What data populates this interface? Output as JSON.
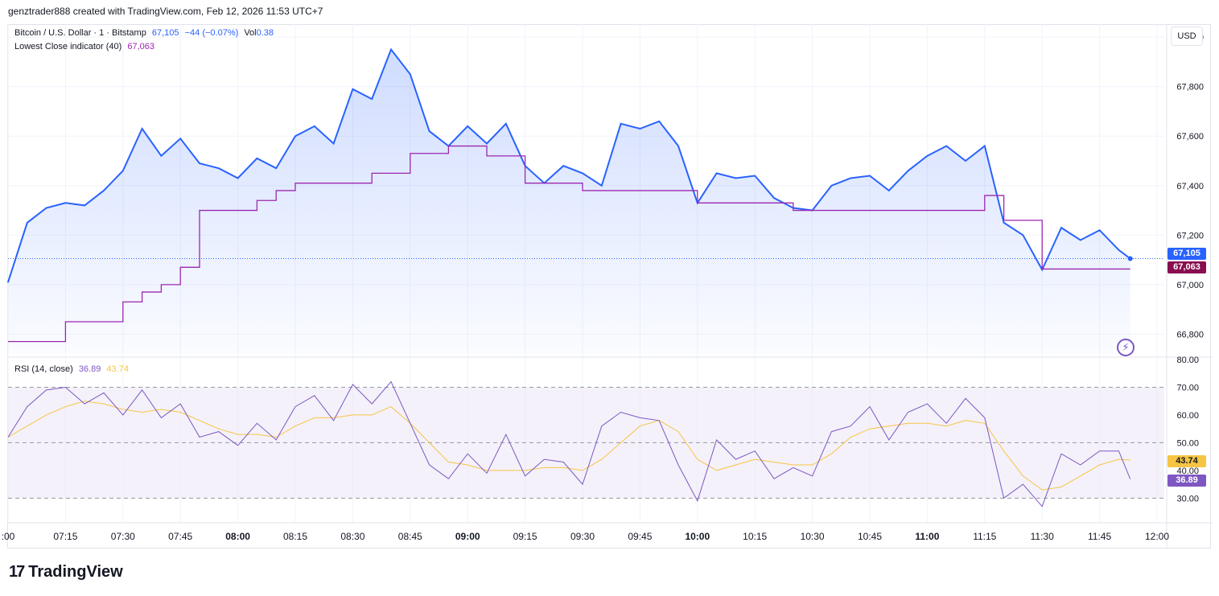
{
  "credit": "genztrader888 created with TradingView.com, Feb 12, 2026 11:53 UTC+7",
  "legend": {
    "symbol": "Bitcoin / U.S. Dollar · 1 · Bitstamp",
    "last": "67,105",
    "change": "−44 (−0.07%)",
    "vol_label": "Vol",
    "vol_value": "0.38",
    "lowest_label": "Lowest Close indicator (40)",
    "lowest_value": "67,063",
    "rsi_label": "RSI (14, close)",
    "rsi_value": "36.89",
    "rsi_ma_value": "43.74"
  },
  "currency_button": "USD",
  "badges": {
    "price": "67,105",
    "lowest": "67,063",
    "rsi_ma": "43.74",
    "rsi": "36.89"
  },
  "price_axis_ticks": [
    "68,000",
    "67,800",
    "67,600",
    "67,400",
    "67,200",
    "67,000",
    "66,800"
  ],
  "rsi_axis_ticks": [
    "80.00",
    "70.00",
    "60.00",
    "50.00",
    "40.00",
    "30.00"
  ],
  "time_axis_ticks": [
    ":00",
    "07:15",
    "07:30",
    "07:45",
    "08:00",
    "08:15",
    "08:30",
    "08:45",
    "09:00",
    "09:15",
    "09:30",
    "09:45",
    "10:00",
    "10:15",
    "10:30",
    "10:45",
    "11:00",
    "11:15",
    "11:30",
    "11:45",
    "12:00"
  ],
  "time_axis_bold": [
    "08:00",
    "09:00",
    "10:00",
    "11:00"
  ],
  "brand": "TradingView",
  "colors": {
    "price": "#2962ff",
    "lowest": "#9c27b0",
    "rsi": "#7e57c2",
    "rsi_ma": "#f7c544",
    "band": "#ede7f6"
  },
  "chart_data": [
    {
      "type": "area",
      "title": "Bitcoin / U.S. Dollar · 1 · Bitstamp",
      "ylim": [
        66720,
        68020
      ],
      "x": [
        "07:00",
        "07:05",
        "07:10",
        "07:15",
        "07:20",
        "07:25",
        "07:30",
        "07:35",
        "07:40",
        "07:45",
        "07:50",
        "07:55",
        "08:00",
        "08:05",
        "08:10",
        "08:15",
        "08:20",
        "08:25",
        "08:30",
        "08:35",
        "08:40",
        "08:45",
        "08:50",
        "08:55",
        "09:00",
        "09:05",
        "09:10",
        "09:15",
        "09:20",
        "09:25",
        "09:30",
        "09:35",
        "09:40",
        "09:45",
        "09:50",
        "09:55",
        "10:00",
        "10:05",
        "10:10",
        "10:15",
        "10:20",
        "10:25",
        "10:30",
        "10:35",
        "10:40",
        "10:45",
        "10:50",
        "10:55",
        "11:00",
        "11:05",
        "11:10",
        "11:15",
        "11:20",
        "11:25",
        "11:30",
        "11:35",
        "11:40",
        "11:45",
        "11:50",
        "11:53"
      ],
      "series": [
        {
          "name": "Bitcoin / U.S. Dollar",
          "values": [
            67010,
            67250,
            67310,
            67330,
            67320,
            67380,
            67460,
            67630,
            67520,
            67590,
            67490,
            67470,
            67430,
            67510,
            67470,
            67600,
            67640,
            67570,
            67790,
            67750,
            67950,
            67850,
            67620,
            67560,
            67640,
            67570,
            67650,
            67480,
            67410,
            67480,
            67450,
            67400,
            67650,
            67630,
            67660,
            67560,
            67330,
            67450,
            67430,
            67440,
            67350,
            67310,
            67300,
            67400,
            67430,
            67440,
            67380,
            67460,
            67520,
            67560,
            67500,
            67560,
            67250,
            67200,
            67060,
            67230,
            67180,
            67220,
            67140,
            67105
          ]
        },
        {
          "name": "Lowest Close indicator (40)",
          "values": [
            66770,
            66770,
            66770,
            66850,
            66850,
            66850,
            66930,
            66970,
            67000,
            67070,
            67300,
            67300,
            67300,
            67340,
            67380,
            67410,
            67410,
            67410,
            67410,
            67450,
            67450,
            67530,
            67530,
            67560,
            67560,
            67520,
            67520,
            67410,
            67410,
            67410,
            67380,
            67380,
            67380,
            67380,
            67380,
            67380,
            67330,
            67330,
            67330,
            67330,
            67330,
            67300,
            67300,
            67300,
            67300,
            67300,
            67300,
            67300,
            67300,
            67300,
            67300,
            67360,
            67260,
            67260,
            67063,
            67063,
            67063,
            67063,
            67063,
            67063
          ]
        }
      ]
    },
    {
      "type": "line",
      "title": "RSI (14, close)",
      "ylim": [
        24,
        80
      ],
      "x": [
        "07:00",
        "07:05",
        "07:10",
        "07:15",
        "07:20",
        "07:25",
        "07:30",
        "07:35",
        "07:40",
        "07:45",
        "07:50",
        "07:55",
        "08:00",
        "08:05",
        "08:10",
        "08:15",
        "08:20",
        "08:25",
        "08:30",
        "08:35",
        "08:40",
        "08:45",
        "08:50",
        "08:55",
        "09:00",
        "09:05",
        "09:10",
        "09:15",
        "09:20",
        "09:25",
        "09:30",
        "09:35",
        "09:40",
        "09:45",
        "09:50",
        "09:55",
        "10:00",
        "10:05",
        "10:10",
        "10:15",
        "10:20",
        "10:25",
        "10:30",
        "10:35",
        "10:40",
        "10:45",
        "10:50",
        "10:55",
        "11:00",
        "11:05",
        "11:10",
        "11:15",
        "11:20",
        "11:25",
        "11:30",
        "11:35",
        "11:40",
        "11:45",
        "11:50",
        "11:53"
      ],
      "series": [
        {
          "name": "RSI",
          "values": [
            52,
            63,
            69,
            70,
            64,
            68,
            60,
            69,
            59,
            64,
            52,
            54,
            49,
            57,
            51,
            63,
            67,
            58,
            71,
            64,
            72,
            57,
            42,
            37,
            46,
            39,
            53,
            38,
            44,
            43,
            35,
            56,
            61,
            59,
            58,
            42,
            29,
            51,
            44,
            47,
            37,
            41,
            38,
            54,
            56,
            63,
            51,
            61,
            64,
            57,
            66,
            59,
            30,
            35,
            27,
            46,
            42,
            47,
            47,
            36.89
          ]
        },
        {
          "name": "RSI MA",
          "values": [
            52,
            56,
            60,
            63,
            65,
            64,
            62,
            61,
            62,
            61,
            58,
            55,
            53,
            53,
            52,
            56,
            59,
            59,
            60,
            60,
            63,
            57,
            50,
            43,
            42,
            40,
            40,
            40,
            41,
            41,
            40,
            44,
            50,
            56,
            58,
            54,
            44,
            40,
            42,
            44,
            43,
            42,
            42,
            46,
            52,
            55,
            56,
            57,
            57,
            56,
            58,
            57,
            47,
            38,
            33,
            34,
            38,
            42,
            44,
            43.74
          ]
        }
      ],
      "levels": [
        70,
        50,
        30
      ]
    }
  ]
}
